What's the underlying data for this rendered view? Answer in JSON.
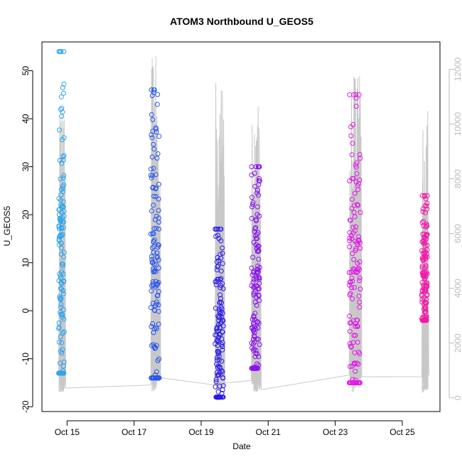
{
  "chart_data": {
    "type": "scatter",
    "title": "ATOM3 Northbound U_GEOS5",
    "xlabel": "Date",
    "ylabel": "U_GEOS5",
    "xlim": [
      "2016-10-14 06:00",
      "2016-10-26 03:00"
    ],
    "ylim": [
      -21,
      56
    ],
    "x_ticks": [
      "Oct 15",
      "Oct 17",
      "Oct 19",
      "Oct 21",
      "Oct 23",
      "Oct 25"
    ],
    "y_ticks": [
      -20,
      -10,
      0,
      10,
      20,
      30,
      40,
      50
    ],
    "y2_ticks": [
      0,
      2000,
      4000,
      6000,
      8000,
      10000,
      12000
    ],
    "y2_lim": [
      -500,
      13000
    ],
    "color_scale": [
      "#29a3f0",
      "#2a57ee",
      "#2d1be8",
      "#8a10ee",
      "#e018e8",
      "#f01aa8"
    ],
    "line_color": "#c8c8c8",
    "grid": false,
    "series": [
      {
        "segment": 1,
        "start": "2016-10-14 18:00",
        "end": "2016-10-14 22:00",
        "u_range": [
          -13,
          54
        ],
        "color": "#29a3f0"
      },
      {
        "segment": 2,
        "start": "2016-10-17 12:00",
        "end": "2016-10-17 18:00",
        "u_range": [
          -14,
          46
        ],
        "color": "#2a57ee"
      },
      {
        "segment": 3,
        "start": "2016-10-19 10:00",
        "end": "2016-10-19 16:00",
        "u_range": [
          -18,
          17
        ],
        "color": "#2d1be8"
      },
      {
        "segment": 4,
        "start": "2016-10-20 12:00",
        "end": "2016-10-20 18:00",
        "u_range": [
          -12,
          30
        ],
        "color": "#8a10ee"
      },
      {
        "segment": 5,
        "start": "2016-10-23 10:00",
        "end": "2016-10-23 18:00",
        "u_range": [
          -15,
          45
        ],
        "color": "#e018e8"
      },
      {
        "segment": 6,
        "start": "2016-10-25 14:00",
        "end": "2016-10-25 18:00",
        "u_range": [
          -2,
          24
        ],
        "color": "#f01aa8"
      }
    ]
  }
}
